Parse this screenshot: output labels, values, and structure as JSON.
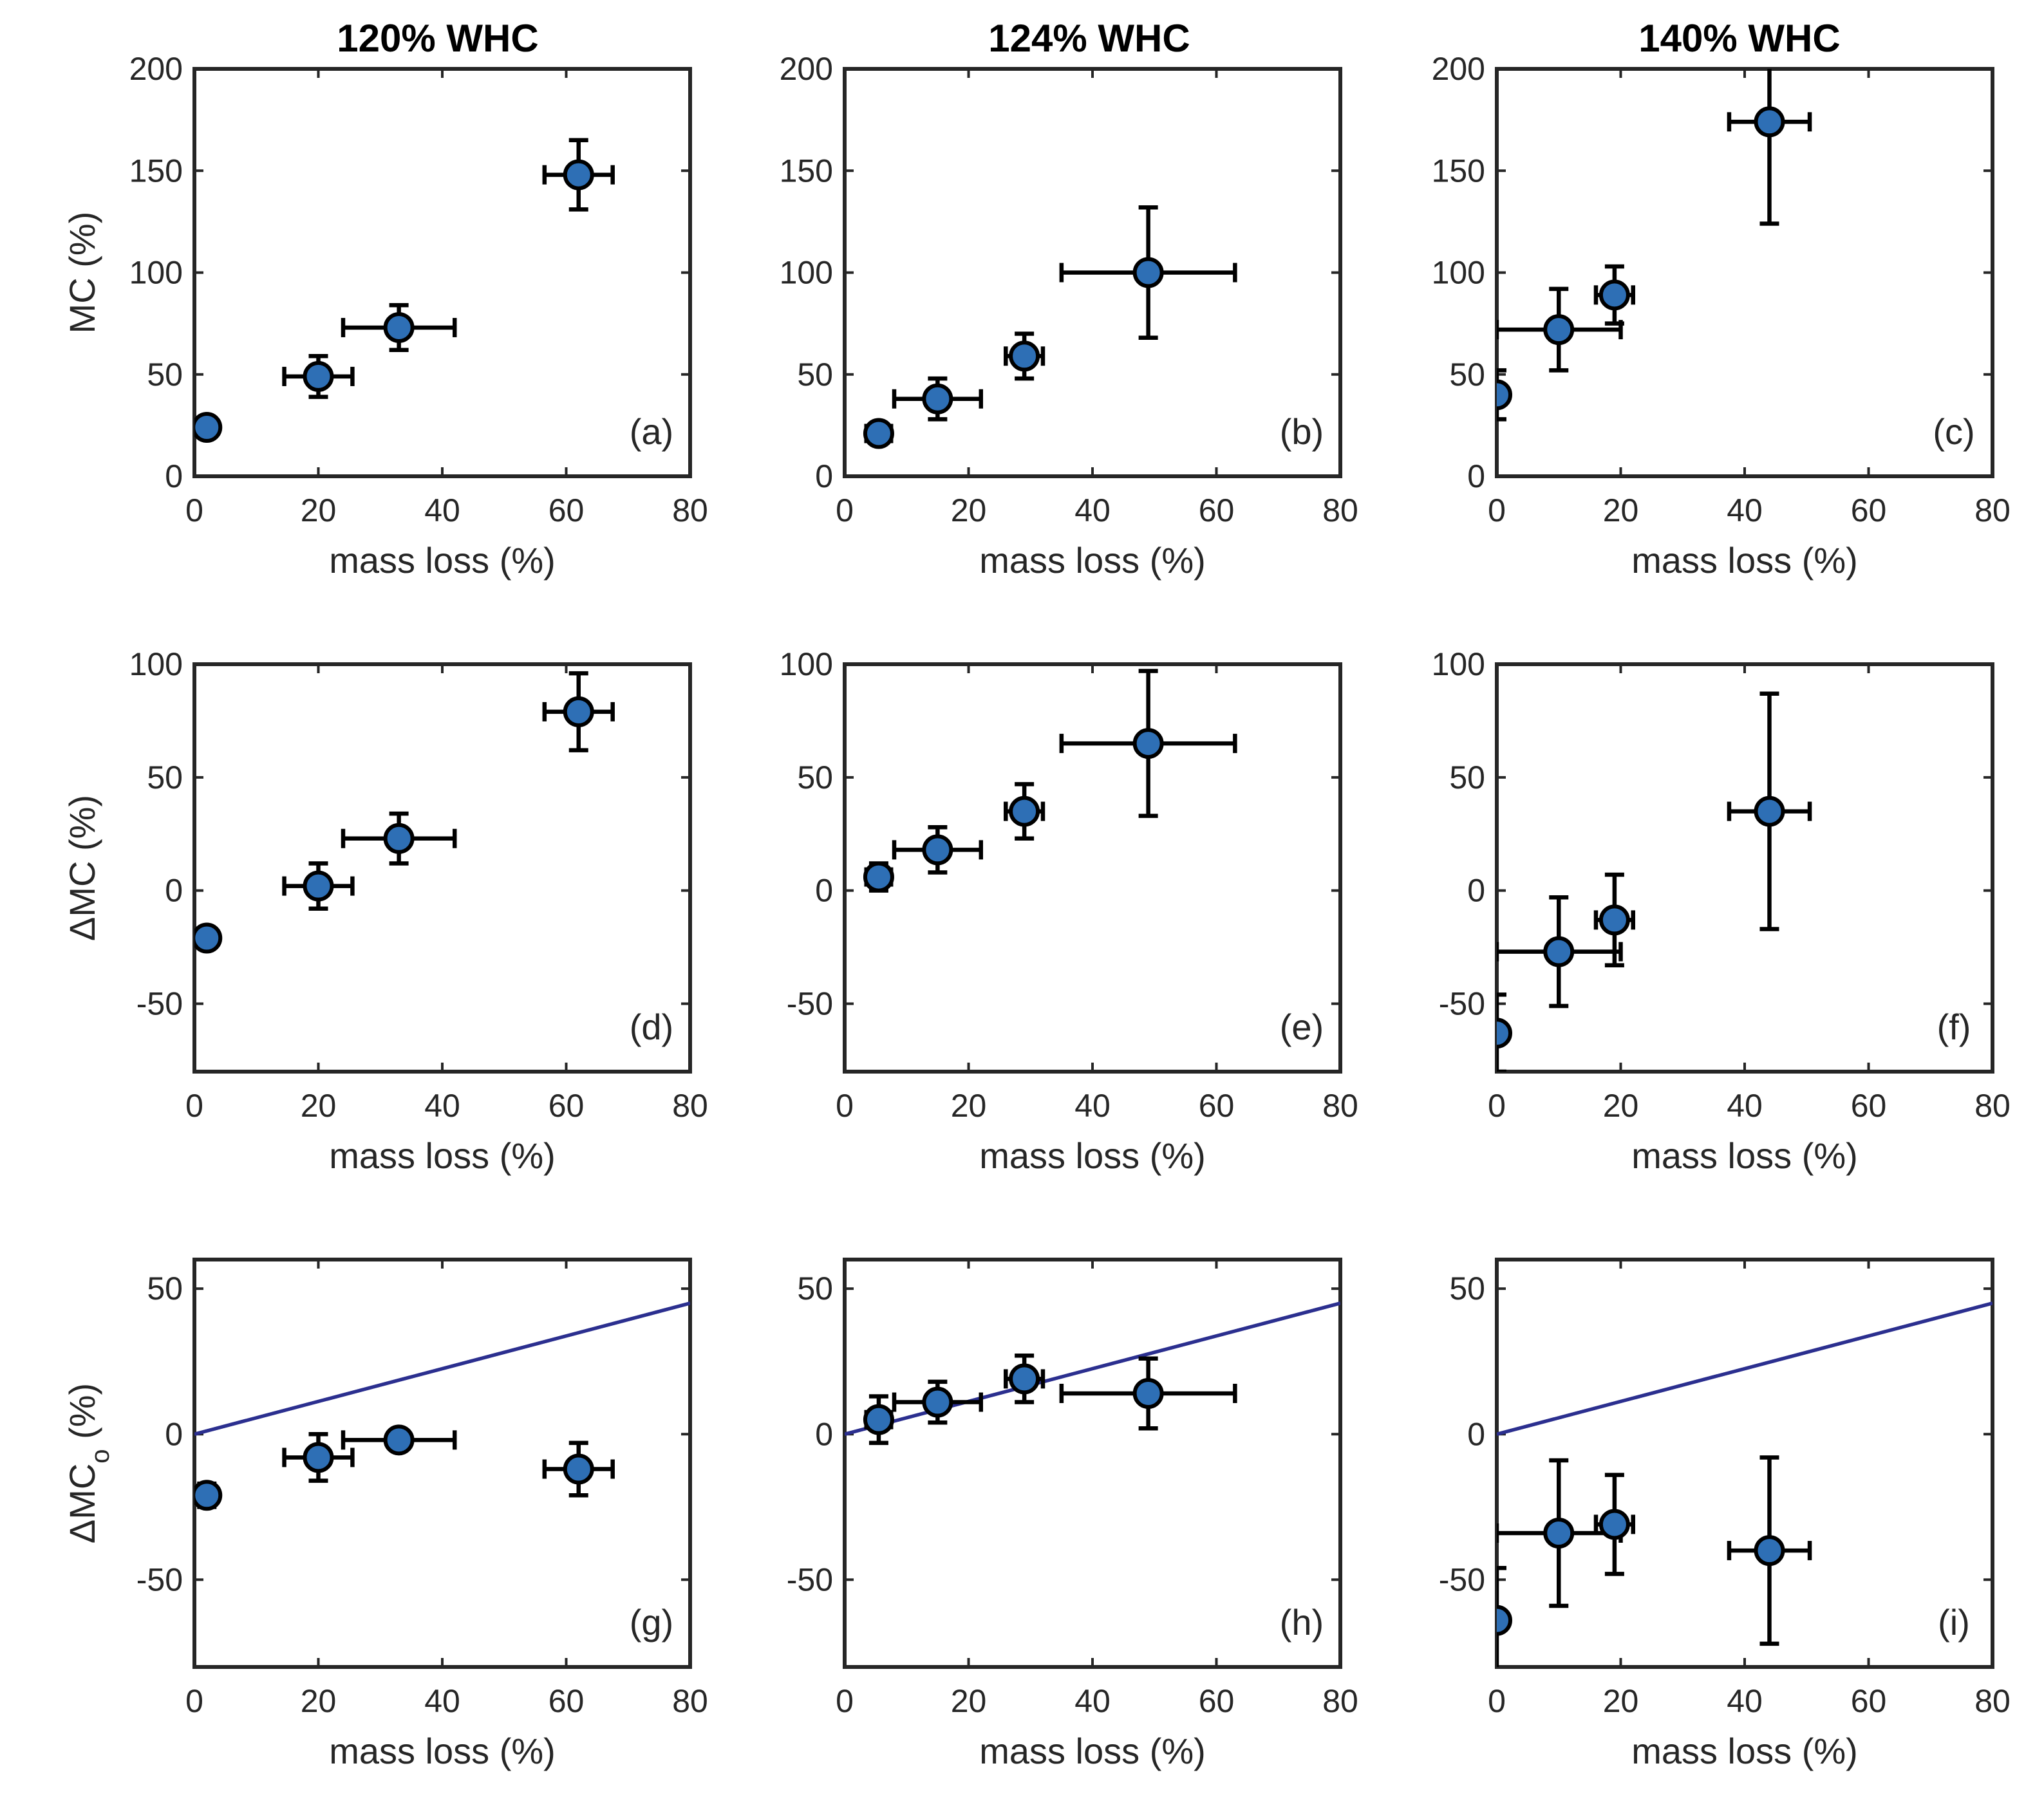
{
  "figure": {
    "column_titles": [
      "120% WHC",
      "124% WHC",
      "140% WHC"
    ]
  },
  "chart_data": [
    {
      "type": "scatter",
      "panel_label": "(a)",
      "title": "120% WHC",
      "xlabel": "mass loss (%)",
      "ylabel": "MC (%)",
      "xlim": [
        0,
        80
      ],
      "ylim": [
        0,
        200
      ],
      "xticks": [
        0,
        20,
        40,
        60,
        80
      ],
      "yticks": [
        0,
        50,
        100,
        150,
        200
      ],
      "points": [
        {
          "x": 2,
          "y": 24,
          "xerr": 1,
          "yerr": 3
        },
        {
          "x": 20,
          "y": 49,
          "xerr": 5.5,
          "yerr": 10
        },
        {
          "x": 33,
          "y": 73,
          "xerr": 9,
          "yerr": 11
        },
        {
          "x": 62,
          "y": 148,
          "xerr": 5.5,
          "yerr": 17
        }
      ],
      "reference_line": null
    },
    {
      "type": "scatter",
      "panel_label": "(b)",
      "title": "124% WHC",
      "xlabel": "mass loss (%)",
      "ylabel": "",
      "xlim": [
        0,
        80
      ],
      "ylim": [
        0,
        200
      ],
      "xticks": [
        0,
        20,
        40,
        60,
        80
      ],
      "yticks": [
        0,
        50,
        100,
        150,
        200
      ],
      "points": [
        {
          "x": 5.5,
          "y": 21,
          "xerr": 2,
          "yerr": 3
        },
        {
          "x": 15,
          "y": 38,
          "xerr": 7,
          "yerr": 10
        },
        {
          "x": 29,
          "y": 59,
          "xerr": 3,
          "yerr": 11
        },
        {
          "x": 49,
          "y": 100,
          "xerr": 14,
          "yerr": 32
        }
      ],
      "reference_line": null
    },
    {
      "type": "scatter",
      "panel_label": "(c)",
      "title": "140% WHC",
      "xlabel": "mass loss (%)",
      "ylabel": "",
      "xlim": [
        0,
        80
      ],
      "ylim": [
        0,
        200
      ],
      "xticks": [
        0,
        20,
        40,
        60,
        80
      ],
      "yticks": [
        0,
        50,
        100,
        150,
        200
      ],
      "points": [
        {
          "x": 0,
          "y": 40,
          "xerr": 0,
          "yerr": 12
        },
        {
          "x": 10,
          "y": 72,
          "xerr": 10,
          "yerr": 20
        },
        {
          "x": 19,
          "y": 89,
          "xerr": 3,
          "yerr": 14
        },
        {
          "x": 44,
          "y": 174,
          "xerr": 6.5,
          "yerr": 50
        }
      ],
      "reference_line": null
    },
    {
      "type": "scatter",
      "panel_label": "(d)",
      "title": "",
      "xlabel": "mass loss (%)",
      "ylabel": "ΔMC (%)",
      "xlim": [
        0,
        80
      ],
      "ylim": [
        -80,
        100
      ],
      "xticks": [
        0,
        20,
        40,
        60,
        80
      ],
      "yticks": [
        -50,
        0,
        50,
        100
      ],
      "points": [
        {
          "x": 2,
          "y": -21,
          "xerr": 1,
          "yerr": 3
        },
        {
          "x": 20,
          "y": 2,
          "xerr": 5.5,
          "yerr": 10
        },
        {
          "x": 33,
          "y": 23,
          "xerr": 9,
          "yerr": 11
        },
        {
          "x": 62,
          "y": 79,
          "xerr": 5.5,
          "yerr": 17
        }
      ],
      "reference_line": null
    },
    {
      "type": "scatter",
      "panel_label": "(e)",
      "title": "",
      "xlabel": "mass loss (%)",
      "ylabel": "",
      "xlim": [
        0,
        80
      ],
      "ylim": [
        -80,
        100
      ],
      "xticks": [
        0,
        20,
        40,
        60,
        80
      ],
      "yticks": [
        -50,
        0,
        50,
        100
      ],
      "points": [
        {
          "x": 5.5,
          "y": 6,
          "xerr": 2,
          "yerr": 6
        },
        {
          "x": 15,
          "y": 18,
          "xerr": 7,
          "yerr": 10
        },
        {
          "x": 29,
          "y": 35,
          "xerr": 3,
          "yerr": 12
        },
        {
          "x": 49,
          "y": 65,
          "xerr": 14,
          "yerr": 32
        }
      ],
      "reference_line": null
    },
    {
      "type": "scatter",
      "panel_label": "(f)",
      "title": "",
      "xlabel": "mass loss (%)",
      "ylabel": "",
      "xlim": [
        0,
        80
      ],
      "ylim": [
        -80,
        100
      ],
      "xticks": [
        0,
        20,
        40,
        60,
        80
      ],
      "yticks": [
        -50,
        0,
        50,
        100
      ],
      "points": [
        {
          "x": 0,
          "y": -63,
          "xerr": 0,
          "yerr": 17
        },
        {
          "x": 10,
          "y": -27,
          "xerr": 10,
          "yerr": 24
        },
        {
          "x": 19,
          "y": -13,
          "xerr": 3,
          "yerr": 20
        },
        {
          "x": 44,
          "y": 35,
          "xerr": 6.5,
          "yerr": 52
        }
      ],
      "reference_line": null
    },
    {
      "type": "scatter",
      "panel_label": "(g)",
      "title": "",
      "xlabel": "mass loss (%)",
      "ylabel": "ΔMC",
      "ylabel_subscript": "o",
      "ylabel_suffix": " (%)",
      "xlim": [
        0,
        80
      ],
      "ylim": [
        -80,
        60
      ],
      "xticks": [
        0,
        20,
        40,
        60,
        80
      ],
      "yticks": [
        -50,
        0,
        50
      ],
      "points": [
        {
          "x": 2,
          "y": -21,
          "xerr": 1,
          "yerr": 4
        },
        {
          "x": 20,
          "y": -8,
          "xerr": 5.5,
          "yerr": 8
        },
        {
          "x": 33,
          "y": -2,
          "xerr": 9,
          "yerr": 2
        },
        {
          "x": 62,
          "y": -12,
          "xerr": 5.5,
          "yerr": 9
        }
      ],
      "reference_line": {
        "x": [
          0,
          80
        ],
        "y": [
          0,
          45
        ]
      }
    },
    {
      "type": "scatter",
      "panel_label": "(h)",
      "title": "",
      "xlabel": "mass loss (%)",
      "ylabel": "",
      "xlim": [
        0,
        80
      ],
      "ylim": [
        -80,
        60
      ],
      "xticks": [
        0,
        20,
        40,
        60,
        80
      ],
      "yticks": [
        -50,
        0,
        50
      ],
      "points": [
        {
          "x": 5.5,
          "y": 5,
          "xerr": 2,
          "yerr": 8
        },
        {
          "x": 15,
          "y": 11,
          "xerr": 7,
          "yerr": 7
        },
        {
          "x": 29,
          "y": 19,
          "xerr": 3,
          "yerr": 8
        },
        {
          "x": 49,
          "y": 14,
          "xerr": 14,
          "yerr": 12
        }
      ],
      "reference_line": {
        "x": [
          0,
          80
        ],
        "y": [
          0,
          45
        ]
      }
    },
    {
      "type": "scatter",
      "panel_label": "(i)",
      "title": "",
      "xlabel": "mass loss (%)",
      "ylabel": "",
      "xlim": [
        0,
        80
      ],
      "ylim": [
        -80,
        60
      ],
      "xticks": [
        0,
        20,
        40,
        60,
        80
      ],
      "yticks": [
        -50,
        0,
        50
      ],
      "points": [
        {
          "x": 0,
          "y": -64,
          "xerr": 0,
          "yerr": 18
        },
        {
          "x": 10,
          "y": -34,
          "xerr": 10,
          "yerr": 25
        },
        {
          "x": 19,
          "y": -31,
          "xerr": 3,
          "yerr": 17
        },
        {
          "x": 44,
          "y": -40,
          "xerr": 6.5,
          "yerr": 32
        }
      ],
      "reference_line": {
        "x": [
          0,
          80
        ],
        "y": [
          0,
          45
        ]
      }
    }
  ]
}
